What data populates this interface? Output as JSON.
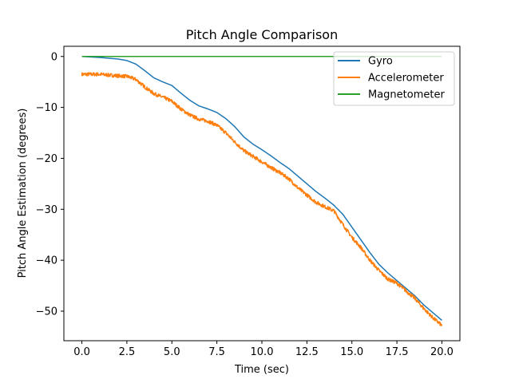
{
  "chart_data": {
    "type": "line",
    "title": "Pitch Angle Comparison",
    "xlabel": "Time (sec)",
    "ylabel": "Pitch Angle Estimation (degrees)",
    "xlim": [
      -1.0,
      21.0
    ],
    "ylim": [
      -55.8,
      2.0
    ],
    "xticks": [
      0.0,
      2.5,
      5.0,
      7.5,
      10.0,
      12.5,
      15.0,
      17.5,
      20.0
    ],
    "xtick_labels": [
      "0.0",
      "2.5",
      "5.0",
      "7.5",
      "10.0",
      "12.5",
      "15.0",
      "17.5",
      "20.0"
    ],
    "yticks": [
      0,
      -10,
      -20,
      -30,
      -40,
      -50
    ],
    "ytick_labels": [
      "0",
      "−10",
      "−20",
      "−30",
      "−40",
      "−50"
    ],
    "grid": false,
    "legend_position": "top-right",
    "series": [
      {
        "name": "Gyro",
        "color": "#1f77b4",
        "noise": 0.0,
        "x": [
          0,
          1,
          2,
          2.5,
          3,
          3.5,
          4,
          4.5,
          5,
          5.5,
          6,
          6.5,
          7,
          7.5,
          8,
          8.5,
          9,
          9.5,
          10,
          10.5,
          11,
          11.5,
          12,
          12.5,
          13,
          13.5,
          14,
          14.5,
          15,
          15.5,
          16,
          16.5,
          17,
          17.5,
          18,
          18.5,
          19,
          19.5,
          20
        ],
        "y": [
          0,
          -0.2,
          -0.5,
          -0.8,
          -1.5,
          -2.8,
          -4.2,
          -5.0,
          -5.7,
          -7.2,
          -8.6,
          -9.7,
          -10.3,
          -11.0,
          -12.2,
          -13.8,
          -15.8,
          -17.2,
          -18.3,
          -19.5,
          -20.8,
          -22.0,
          -23.5,
          -25.0,
          -26.5,
          -27.8,
          -29.2,
          -31.0,
          -33.5,
          -36.0,
          -38.5,
          -40.8,
          -42.5,
          -44.0,
          -45.5,
          -47.0,
          -48.8,
          -50.3,
          -51.8
        ]
      },
      {
        "name": "Accelerometer",
        "color": "#ff7f0e",
        "noise": 0.35,
        "x": [
          0,
          1,
          2,
          2.5,
          3,
          3.5,
          4,
          4.5,
          5,
          5.5,
          6,
          6.5,
          7,
          7.5,
          8,
          8.5,
          9,
          9.5,
          10,
          10.5,
          11,
          11.5,
          12,
          12.5,
          13,
          13.5,
          14,
          14.5,
          15,
          15.5,
          16,
          16.5,
          17,
          17.5,
          18,
          18.5,
          19,
          19.5,
          20
        ],
        "y": [
          -3.5,
          -3.5,
          -3.8,
          -3.9,
          -4.5,
          -6.0,
          -7.3,
          -8.0,
          -8.8,
          -10.3,
          -11.5,
          -12.3,
          -12.7,
          -13.5,
          -15.0,
          -16.8,
          -18.5,
          -19.6,
          -20.7,
          -21.8,
          -22.8,
          -24.0,
          -25.8,
          -27.2,
          -28.6,
          -29.5,
          -30.3,
          -33.0,
          -35.5,
          -37.5,
          -40.0,
          -42.0,
          -43.7,
          -44.5,
          -46.0,
          -47.5,
          -49.5,
          -51.3,
          -52.8
        ]
      },
      {
        "name": "Magnetometer",
        "color": "#2ca02c",
        "noise": 0.0,
        "x": [
          0,
          20
        ],
        "y": [
          0,
          0
        ]
      }
    ]
  }
}
